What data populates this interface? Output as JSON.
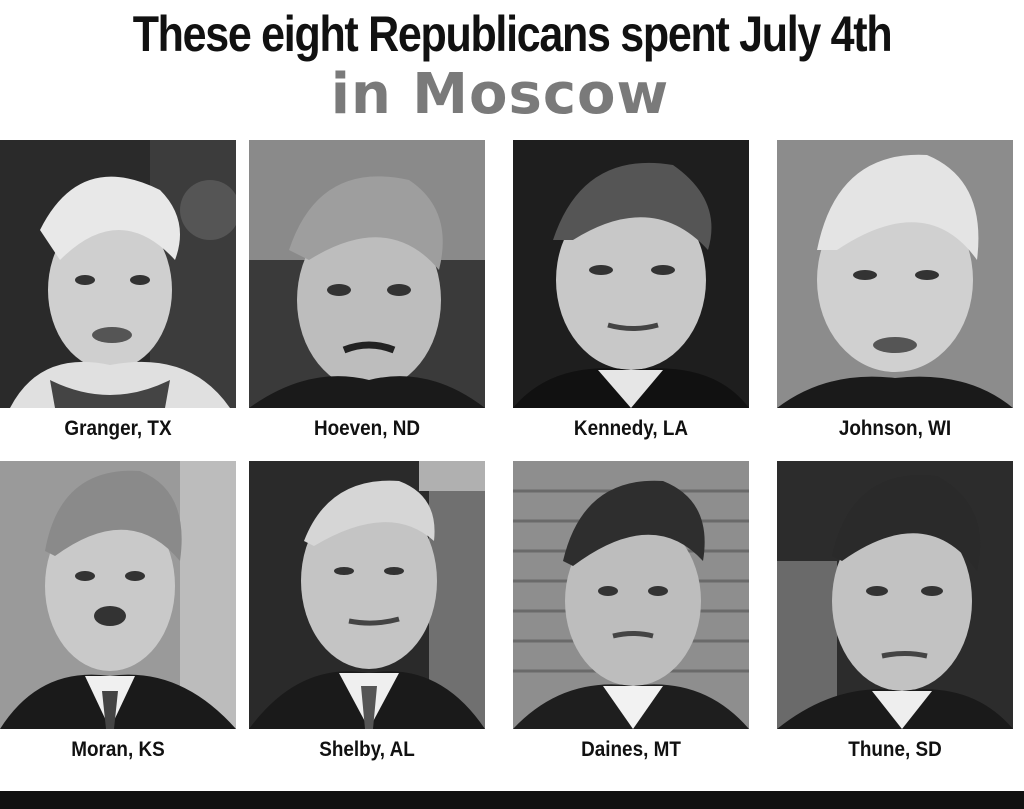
{
  "headline": "These eight Republicans spent July 4th",
  "subheadline": "in Moscow",
  "colors": {
    "headline": "#111111",
    "subheadline": "#7a7a7a",
    "bottom_bar": "#111111"
  },
  "people": [
    {
      "caption": "Granger, TX",
      "icon": "portrait-photo"
    },
    {
      "caption": "Hoeven, ND",
      "icon": "portrait-photo"
    },
    {
      "caption": "Kennedy, LA",
      "icon": "portrait-photo"
    },
    {
      "caption": "Johnson, WI",
      "icon": "portrait-photo"
    },
    {
      "caption": "Moran, KS",
      "icon": "portrait-photo"
    },
    {
      "caption": "Shelby, AL",
      "icon": "portrait-photo"
    },
    {
      "caption": "Daines, MT",
      "icon": "portrait-photo"
    },
    {
      "caption": "Thune, SD",
      "icon": "portrait-photo"
    }
  ]
}
